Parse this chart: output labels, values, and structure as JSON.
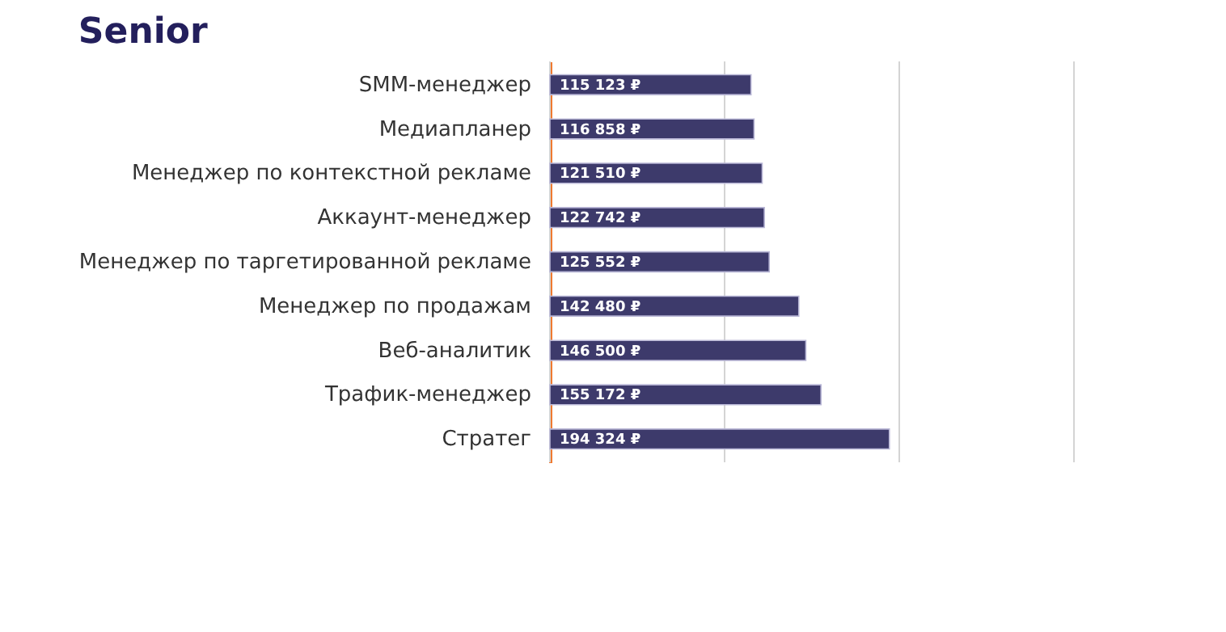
{
  "chart_data": {
    "type": "bar",
    "orientation": "horizontal",
    "title": "Senior",
    "categories": [
      "SMM-менеджер",
      "Медиапланер",
      "Менеджер по контекстной рекламе",
      "Аккаунт-менеджер",
      "Менеджер по таргетированной рекламе",
      "Менеджер по продажам",
      "Веб-аналитик",
      "Трафик-менеджер",
      "Стратег"
    ],
    "values": [
      115123,
      116858,
      121510,
      122742,
      125552,
      142480,
      146500,
      155172,
      194324
    ],
    "value_labels": [
      "115 123 ₽",
      "116 858 ₽",
      "121 510 ₽",
      "122 742 ₽",
      "125 552 ₽",
      "142 480 ₽",
      "146 500 ₽",
      "155 172 ₽",
      "194 324 ₽"
    ],
    "color": "#3d3a6b",
    "xlim": [
      0,
      300000
    ],
    "xticks": [
      {
        "value": 0,
        "label": null
      },
      {
        "value": 100000,
        "label": null
      },
      {
        "value": 200000,
        "label": null
      },
      {
        "value": 300000,
        "label": null
      }
    ],
    "grid": "x",
    "tick_labels": "y"
  }
}
